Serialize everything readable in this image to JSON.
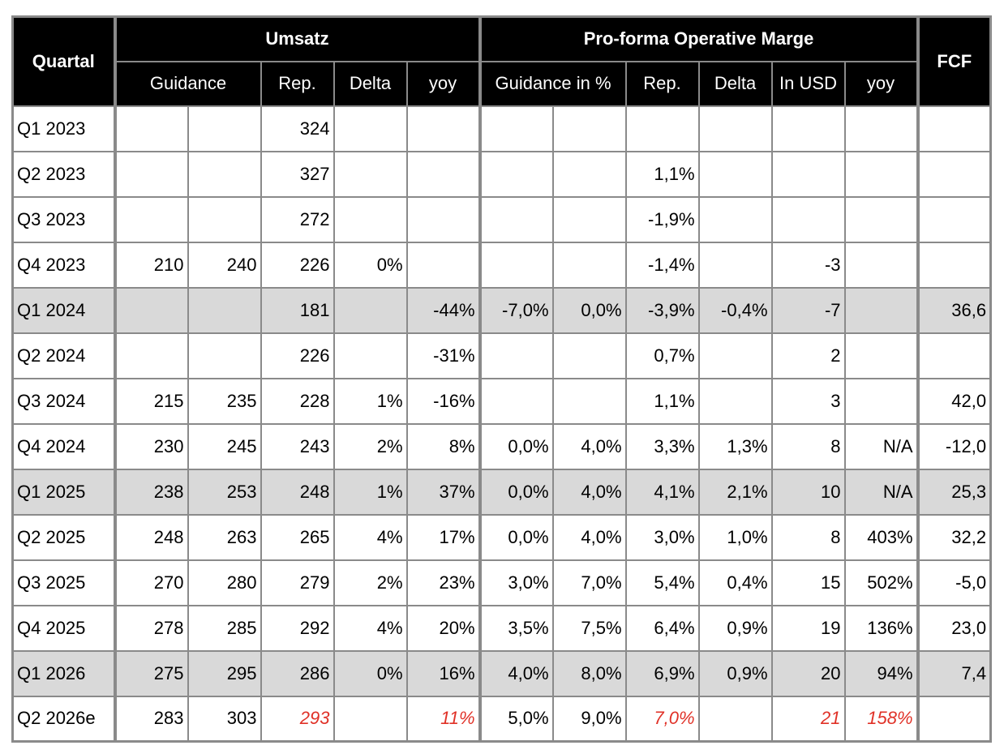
{
  "table": {
    "header": {
      "quartal": "Quartal",
      "umsatz": "Umsatz",
      "marge": "Pro-forma Operative Marge",
      "fcf": "FCF",
      "sub": [
        "Guidance",
        "Rep.",
        "Delta",
        "yoy",
        "Guidance in %",
        "Rep.",
        "Delta",
        "In USD",
        "yoy"
      ]
    },
    "rows": [
      [
        "Q1 2023",
        null,
        null,
        "324",
        null,
        null,
        null,
        null,
        null,
        null,
        null,
        null,
        null
      ],
      [
        "Q2 2023",
        null,
        null,
        "327",
        null,
        null,
        null,
        null,
        "1,1%",
        null,
        null,
        null,
        null
      ],
      [
        "Q3 2023",
        null,
        null,
        "272",
        null,
        null,
        null,
        null,
        "-1,9%",
        null,
        null,
        null,
        null
      ],
      [
        "Q4 2023",
        "210",
        "240",
        "226",
        "0%",
        null,
        null,
        null,
        "-1,4%",
        null,
        "-3",
        null,
        null
      ],
      [
        "Q1 2024",
        null,
        null,
        "181",
        null,
        "-44%",
        "-7,0%",
        "0,0%",
        "-3,9%",
        "-0,4%",
        "-7",
        null,
        "36,6"
      ],
      [
        "Q2 2024",
        null,
        null,
        "226",
        null,
        "-31%",
        null,
        null,
        "0,7%",
        null,
        "2",
        null,
        null
      ],
      [
        "Q3 2024",
        "215",
        "235",
        "228",
        "1%",
        "-16%",
        null,
        null,
        "1,1%",
        null,
        "3",
        null,
        "42,0"
      ],
      [
        "Q4 2024",
        "230",
        "245",
        "243",
        "2%",
        "8%",
        "0,0%",
        "4,0%",
        "3,3%",
        "1,3%",
        "8",
        "N/A",
        "-12,0"
      ],
      [
        "Q1 2025",
        "238",
        "253",
        "248",
        "1%",
        "37%",
        "0,0%",
        "4,0%",
        "4,1%",
        "2,1%",
        "10",
        "N/A",
        "25,3"
      ],
      [
        "Q2 2025",
        "248",
        "263",
        "265",
        "4%",
        "17%",
        "0,0%",
        "4,0%",
        "3,0%",
        "1,0%",
        "8",
        "403%",
        "32,2"
      ],
      [
        "Q3 2025",
        "270",
        "280",
        "279",
        "2%",
        "23%",
        "3,0%",
        "7,0%",
        "5,4%",
        "0,4%",
        "15",
        "502%",
        "-5,0"
      ],
      [
        "Q4 2025",
        "278",
        "285",
        "292",
        "4%",
        "20%",
        "3,5%",
        "7,5%",
        "6,4%",
        "0,9%",
        "19",
        "136%",
        "23,0"
      ],
      [
        "Q1 2026",
        "275",
        "295",
        "286",
        "0%",
        "16%",
        "4,0%",
        "8,0%",
        "6,9%",
        "0,9%",
        "20",
        "94%",
        "7,4"
      ],
      [
        "Q2 2026e",
        "283",
        "303",
        "293",
        null,
        "11%",
        "5,0%",
        "9,0%",
        "7,0%",
        null,
        "21",
        "158%",
        null
      ]
    ]
  }
}
